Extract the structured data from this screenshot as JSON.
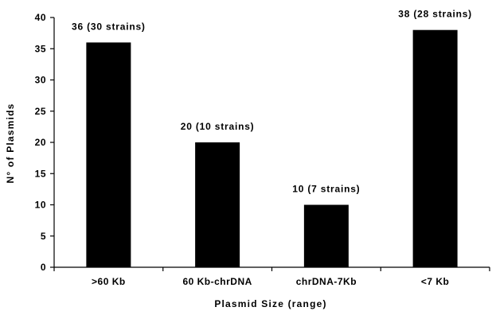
{
  "chart_data": {
    "type": "bar",
    "categories": [
      ">60 Kb",
      "60 Kb-chrDNA",
      "chrDNA-7Kb",
      "<7 Kb"
    ],
    "values": [
      36,
      20,
      10,
      38
    ],
    "data_labels": [
      "36 (30 strains)",
      "20 (10 strains)",
      "10 (7 strains)",
      "38 (28 strains)"
    ],
    "title": "",
    "xlabel": "Plasmid Size (range)",
    "ylabel": "N° of Plasmids",
    "ylim": [
      0,
      40
    ],
    "yticks": [
      "0",
      "5",
      "10",
      "15",
      "20",
      "25",
      "30",
      "35",
      "40"
    ],
    "grid": false,
    "legend": "none",
    "bar_color": "#000000"
  }
}
